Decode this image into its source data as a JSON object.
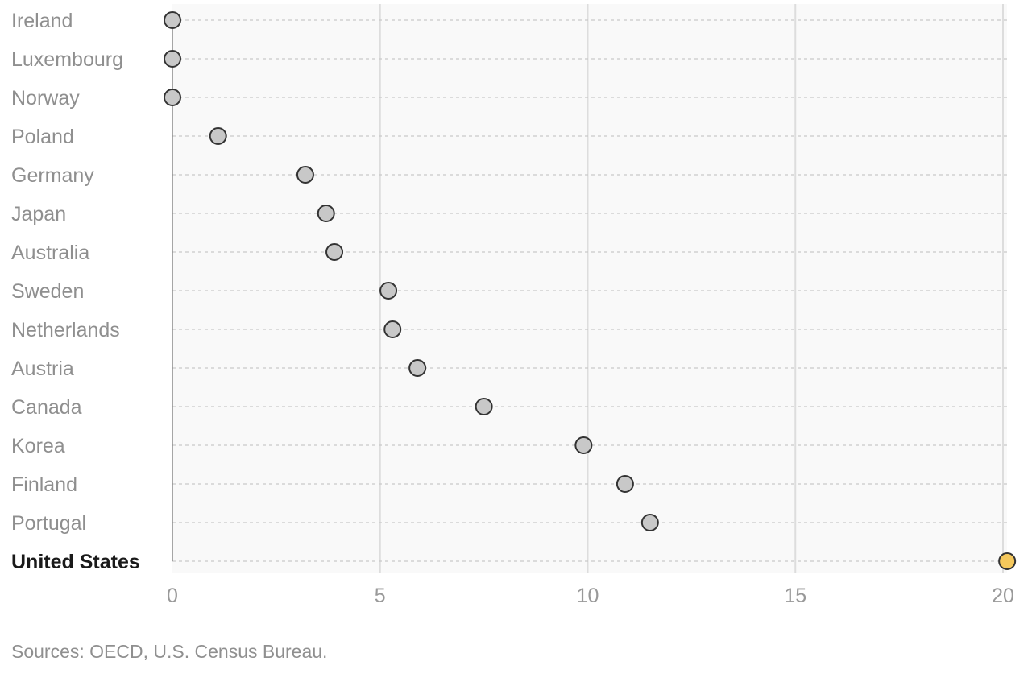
{
  "chart_data": {
    "type": "scatter",
    "orientation": "horizontal-dot-plot",
    "categories": [
      "Ireland",
      "Luxembourg",
      "Norway",
      "Poland",
      "Germany",
      "Japan",
      "Australia",
      "Sweden",
      "Netherlands",
      "Austria",
      "Canada",
      "Korea",
      "Finland",
      "Portugal",
      "United States"
    ],
    "values": [
      0,
      0,
      0,
      1.1,
      3.2,
      3.7,
      3.9,
      5.2,
      5.3,
      5.9,
      7.5,
      9.9,
      10.9,
      11.5,
      20.1
    ],
    "highlight": "United States",
    "xlim": [
      0,
      20
    ],
    "xticks": [
      0,
      5,
      10,
      15,
      20
    ],
    "grid": true,
    "colors": {
      "dot": "#c8c8c8",
      "dot_stroke": "#333333",
      "highlight_dot": "#f5c85c",
      "plot_background": "#f9f9f9",
      "gridline": "#dddddd",
      "label": "#8f8f8f",
      "highlight_label": "#1a1a1a"
    }
  },
  "source_note": "Sources: OECD, U.S. Census Bureau."
}
